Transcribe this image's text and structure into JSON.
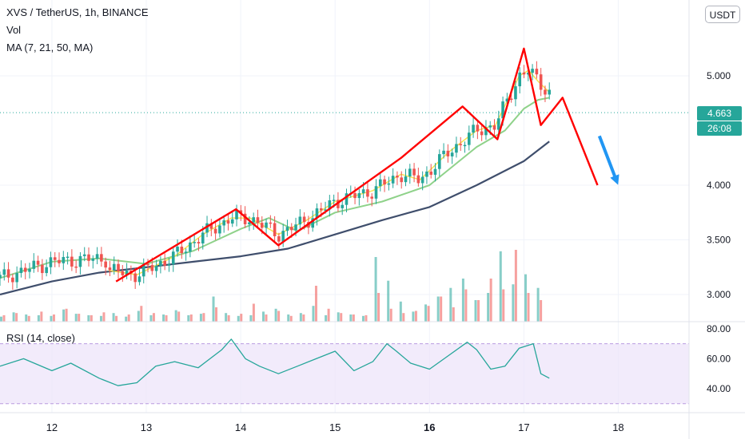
{
  "header": {
    "symbol_line": "XVS / TetherUS, 1h, BINANCE",
    "vol_label": "Vol",
    "ma_label": "MA (7, 21, 50, MA)"
  },
  "currency_button": "USDT",
  "price_badge": {
    "price": "4.663",
    "countdown": "26:08",
    "color": "#26a69a"
  },
  "rsi": {
    "label": "RSI (14, close)"
  },
  "chart_data": [
    {
      "type": "line",
      "title": "",
      "x_axis": {
        "type": "date",
        "ticks": [
          "12",
          "13",
          "14",
          "15",
          "16",
          "17",
          "18"
        ],
        "xlim_days": [
          11.45,
          18.75
        ]
      },
      "y_axis": {
        "scale": "linear",
        "ticks": [
          "3.000",
          "3.500",
          "4.000",
          "5.000"
        ],
        "ylim": [
          2.85,
          5.5
        ],
        "position": "right"
      },
      "current_price": 4.663,
      "colors": {
        "up": "#26a69a",
        "down": "#ef5350",
        "ma7": "#f7e351",
        "ma21": "#8fd28a",
        "ma50": "#3f4e6c",
        "pattern": "#ff0000",
        "arrow": "#2196f3"
      },
      "ma50": {
        "x": [
          11.45,
          12.0,
          12.5,
          13.0,
          13.5,
          14.0,
          14.5,
          15.0,
          15.5,
          16.0,
          16.5,
          17.0,
          17.27
        ],
        "y": [
          3.0,
          3.12,
          3.2,
          3.25,
          3.3,
          3.35,
          3.42,
          3.55,
          3.68,
          3.8,
          4.0,
          4.22,
          4.4
        ]
      },
      "ma21": {
        "x": [
          11.45,
          12.0,
          12.5,
          13.0,
          13.5,
          14.0,
          14.3,
          14.6,
          15.0,
          15.5,
          16.0,
          16.5,
          16.8,
          17.0,
          17.15,
          17.27
        ],
        "y": [
          3.15,
          3.3,
          3.33,
          3.28,
          3.4,
          3.6,
          3.7,
          3.58,
          3.75,
          3.85,
          4.0,
          4.35,
          4.5,
          4.7,
          4.78,
          4.8
        ]
      },
      "ma7": {
        "x": [
          12.6,
          12.9,
          13.3,
          13.6,
          13.9,
          14.1,
          14.4,
          14.7,
          15.0,
          15.4,
          15.7,
          15.9,
          16.2,
          16.5,
          16.7,
          16.95,
          17.05,
          17.15,
          17.27
        ],
        "y": [
          3.22,
          3.18,
          3.35,
          3.55,
          3.7,
          3.7,
          3.55,
          3.68,
          3.85,
          3.95,
          4.1,
          4.05,
          4.3,
          4.5,
          4.55,
          5.0,
          5.05,
          4.95,
          4.85
        ]
      },
      "pattern_line": {
        "x": [
          12.68,
          13.95,
          14.4,
          15.7,
          16.35,
          16.72,
          17.0,
          17.18,
          17.41,
          17.78
        ],
        "y": [
          3.12,
          3.78,
          3.45,
          4.25,
          4.72,
          4.42,
          5.25,
          4.55,
          4.8,
          4.0
        ]
      },
      "forecast_arrow": {
        "start": [
          17.8,
          4.45
        ],
        "end": [
          17.98,
          4.0
        ]
      }
    },
    {
      "type": "bar",
      "name": "Vol",
      "up_heights": [
        7,
        13,
        10,
        9,
        8,
        17,
        11,
        9,
        8,
        12,
        7,
        15,
        9,
        10,
        16,
        9,
        11,
        35,
        12,
        8,
        9,
        14,
        18,
        10,
        12,
        22,
        9,
        13,
        10,
        8,
        90,
        57,
        28,
        14,
        24,
        35,
        47,
        60,
        30,
        40,
        98,
        52,
        66,
        47
      ],
      "down_heights": [
        9,
        12,
        8,
        14,
        10,
        18,
        11,
        9,
        13,
        8,
        10,
        22,
        12,
        9,
        14,
        10,
        12,
        20,
        9,
        11,
        25,
        10,
        15,
        8,
        10,
        50,
        18,
        12,
        10,
        9,
        40,
        18,
        12,
        15,
        22,
        35,
        20,
        45,
        30,
        60,
        45,
        100,
        40,
        30
      ]
    },
    {
      "type": "line",
      "name": "RSI",
      "y_axis": {
        "ticks": [
          "40.00",
          "60.00",
          "80.00"
        ],
        "ylim": [
          25,
          82
        ],
        "band": [
          30,
          70
        ],
        "position": "right"
      },
      "x": [
        11.45,
        11.7,
        12.0,
        12.2,
        12.5,
        12.7,
        12.9,
        13.1,
        13.3,
        13.55,
        13.8,
        13.9,
        14.05,
        14.2,
        14.4,
        14.6,
        14.8,
        15.0,
        15.2,
        15.4,
        15.55,
        15.65,
        15.8,
        16.0,
        16.2,
        16.4,
        16.5,
        16.65,
        16.8,
        16.95,
        17.1,
        17.18,
        17.27
      ],
      "y": [
        55,
        60,
        52,
        57,
        47,
        42,
        44,
        55,
        58,
        54,
        66,
        73,
        60,
        55,
        50,
        55,
        60,
        65,
        52,
        58,
        70,
        65,
        57,
        53,
        62,
        71,
        66,
        53,
        55,
        67,
        70,
        50,
        47
      ]
    }
  ]
}
